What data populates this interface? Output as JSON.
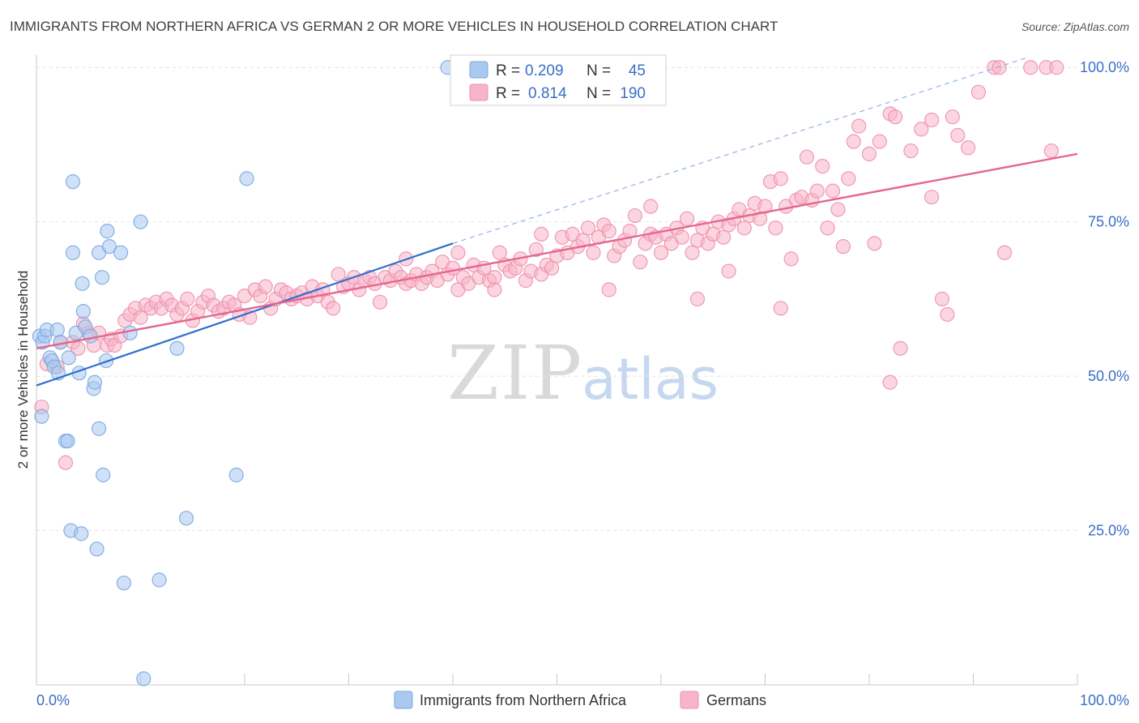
{
  "title": "IMMIGRANTS FROM NORTHERN AFRICA VS GERMAN 2 OR MORE VEHICLES IN HOUSEHOLD CORRELATION CHART",
  "source": "Source: ZipAtlas.com",
  "watermark": {
    "zip": "ZIP",
    "atlas": "atlas"
  },
  "legend_top": {
    "rows": [
      {
        "r_label": "R =",
        "r_value": "0.209",
        "n_label": "N =",
        "n_value": "45",
        "color": "#a9c9f0"
      },
      {
        "r_label": "R =",
        "r_value": "0.814",
        "n_label": "N =",
        "n_value": "190",
        "color": "#f7b5c9"
      }
    ]
  },
  "legend_bottom": {
    "items": [
      {
        "label": "Immigrants from Northern Africa",
        "color": "#a9c9f0"
      },
      {
        "label": "Germans",
        "color": "#f7b5c9"
      }
    ]
  },
  "chart_data": {
    "type": "scatter",
    "title": "IMMIGRANTS FROM NORTHERN AFRICA VS GERMAN 2 OR MORE VEHICLES IN HOUSEHOLD CORRELATION CHART",
    "xlabel": "",
    "ylabel": "2 or more Vehicles in Household",
    "xlim": [
      0,
      100
    ],
    "ylim": [
      0,
      102
    ],
    "x_ticks": [
      "0.0%",
      "100.0%"
    ],
    "y_ticks": [
      {
        "value": 25,
        "label": "25.0%"
      },
      {
        "value": 50,
        "label": "50.0%"
      },
      {
        "value": 75,
        "label": "75.0%"
      },
      {
        "value": 100,
        "label": "100.0%"
      }
    ],
    "series": [
      {
        "name": "Immigrants from Northern Africa",
        "color": "#a9c9f0",
        "stroke": "#7aa8e0",
        "trend": {
          "x0": 0,
          "y0": 48.5,
          "x1": 40,
          "y1": 71.5,
          "dash_to_x": 95,
          "dash_to_y": 101.5,
          "color": "#2f6fd0"
        },
        "points": [
          [
            0.3,
            56.5
          ],
          [
            0.5,
            43.5
          ],
          [
            0.6,
            55.5
          ],
          [
            0.8,
            56.5
          ],
          [
            1.0,
            57.5
          ],
          [
            1.3,
            53.0
          ],
          [
            1.5,
            52.5
          ],
          [
            1.7,
            51.5
          ],
          [
            2.0,
            57.5
          ],
          [
            2.1,
            50.5
          ],
          [
            2.3,
            55.5
          ],
          [
            2.8,
            39.5
          ],
          [
            3.0,
            39.5
          ],
          [
            3.1,
            53.0
          ],
          [
            3.3,
            25.0
          ],
          [
            3.5,
            81.5
          ],
          [
            3.5,
            70.0
          ],
          [
            3.8,
            57.0
          ],
          [
            4.1,
            50.5
          ],
          [
            4.3,
            24.5
          ],
          [
            4.4,
            65.0
          ],
          [
            4.5,
            60.5
          ],
          [
            4.7,
            58.0
          ],
          [
            5.2,
            56.5
          ],
          [
            5.5,
            48.0
          ],
          [
            5.6,
            49.0
          ],
          [
            5.8,
            22.0
          ],
          [
            6.0,
            41.5
          ],
          [
            6.0,
            70.0
          ],
          [
            6.3,
            66.0
          ],
          [
            6.4,
            34.0
          ],
          [
            6.7,
            52.5
          ],
          [
            6.8,
            73.5
          ],
          [
            7.0,
            71.0
          ],
          [
            8.1,
            70.0
          ],
          [
            8.4,
            16.5
          ],
          [
            9.0,
            57.0
          ],
          [
            10.0,
            75.0
          ],
          [
            10.3,
            1.0
          ],
          [
            11.8,
            17.0
          ],
          [
            13.5,
            54.5
          ],
          [
            14.4,
            27.0
          ],
          [
            19.2,
            34.0
          ],
          [
            20.2,
            82.0
          ],
          [
            39.5,
            100.0
          ]
        ]
      },
      {
        "name": "Germans",
        "color": "#f7b5c9",
        "stroke": "#ee8fad",
        "trend": {
          "x0": 0,
          "y0": 54.5,
          "x1": 100,
          "y1": 86.0,
          "color": "#e4678f"
        },
        "points": [
          [
            0.5,
            45.0
          ],
          [
            1.0,
            52.0
          ],
          [
            2.0,
            51.5
          ],
          [
            2.3,
            55.5
          ],
          [
            2.8,
            36.0
          ],
          [
            3.5,
            55.5
          ],
          [
            4.0,
            54.5
          ],
          [
            4.5,
            58.5
          ],
          [
            5.0,
            57.0
          ],
          [
            5.5,
            55.0
          ],
          [
            6.0,
            57.0
          ],
          [
            6.8,
            55.0
          ],
          [
            7.2,
            56.0
          ],
          [
            7.5,
            55.0
          ],
          [
            8.1,
            56.5
          ],
          [
            8.5,
            59.0
          ],
          [
            9.0,
            60.0
          ],
          [
            9.5,
            61.0
          ],
          [
            10.0,
            59.5
          ],
          [
            10.5,
            61.5
          ],
          [
            11.0,
            61.0
          ],
          [
            11.5,
            62.0
          ],
          [
            12.0,
            61.0
          ],
          [
            12.5,
            62.5
          ],
          [
            13.0,
            61.5
          ],
          [
            13.5,
            60.0
          ],
          [
            14.0,
            61.0
          ],
          [
            14.5,
            62.5
          ],
          [
            15.0,
            59.0
          ],
          [
            15.5,
            60.5
          ],
          [
            16.0,
            62.0
          ],
          [
            16.5,
            63.0
          ],
          [
            17.0,
            61.5
          ],
          [
            17.5,
            60.5
          ],
          [
            18.0,
            61.0
          ],
          [
            18.5,
            62.0
          ],
          [
            19.0,
            61.5
          ],
          [
            19.5,
            60.0
          ],
          [
            20.0,
            63.0
          ],
          [
            20.5,
            59.5
          ],
          [
            21.0,
            64.0
          ],
          [
            21.5,
            63.0
          ],
          [
            22.0,
            64.5
          ],
          [
            22.5,
            61.0
          ],
          [
            23.0,
            62.5
          ],
          [
            23.5,
            64.0
          ],
          [
            24.0,
            63.5
          ],
          [
            24.5,
            62.5
          ],
          [
            25.0,
            63.0
          ],
          [
            25.5,
            63.5
          ],
          [
            26.0,
            62.5
          ],
          [
            26.5,
            64.5
          ],
          [
            27.0,
            63.0
          ],
          [
            27.5,
            64.0
          ],
          [
            28.0,
            62.0
          ],
          [
            28.5,
            61.0
          ],
          [
            29.0,
            66.5
          ],
          [
            29.5,
            64.5
          ],
          [
            30.0,
            65.0
          ],
          [
            30.5,
            66.0
          ],
          [
            31.0,
            64.0
          ],
          [
            31.5,
            65.5
          ],
          [
            32.0,
            66.0
          ],
          [
            32.5,
            65.0
          ],
          [
            33.0,
            62.0
          ],
          [
            33.5,
            66.0
          ],
          [
            34.0,
            65.5
          ],
          [
            34.5,
            67.0
          ],
          [
            35.0,
            66.0
          ],
          [
            35.5,
            65.0
          ],
          [
            36.0,
            65.5
          ],
          [
            36.5,
            66.5
          ],
          [
            37.0,
            65.0
          ],
          [
            37.5,
            66.0
          ],
          [
            38.0,
            67.0
          ],
          [
            38.5,
            65.5
          ],
          [
            39.0,
            68.5
          ],
          [
            39.5,
            66.5
          ],
          [
            40.0,
            67.5
          ],
          [
            40.5,
            64.0
          ],
          [
            41.0,
            66.0
          ],
          [
            41.5,
            65.0
          ],
          [
            42.0,
            68.0
          ],
          [
            42.5,
            66.0
          ],
          [
            43.0,
            67.5
          ],
          [
            43.5,
            65.5
          ],
          [
            44.0,
            66.0
          ],
          [
            44.5,
            70.0
          ],
          [
            45.0,
            68.0
          ],
          [
            45.5,
            67.0
          ],
          [
            46.0,
            67.5
          ],
          [
            46.5,
            69.0
          ],
          [
            47.0,
            65.5
          ],
          [
            47.5,
            67.0
          ],
          [
            48.0,
            70.5
          ],
          [
            48.5,
            66.5
          ],
          [
            49.0,
            68.0
          ],
          [
            49.5,
            67.5
          ],
          [
            50.0,
            69.5
          ],
          [
            50.5,
            72.5
          ],
          [
            51.0,
            70.0
          ],
          [
            51.5,
            73.0
          ],
          [
            52.0,
            71.0
          ],
          [
            52.5,
            72.0
          ],
          [
            53.0,
            74.0
          ],
          [
            53.5,
            70.0
          ],
          [
            54.0,
            72.5
          ],
          [
            54.5,
            74.5
          ],
          [
            55.0,
            73.5
          ],
          [
            55.5,
            69.5
          ],
          [
            56.0,
            71.0
          ],
          [
            56.5,
            72.0
          ],
          [
            57.0,
            73.5
          ],
          [
            57.5,
            76.0
          ],
          [
            58.0,
            68.5
          ],
          [
            58.5,
            71.5
          ],
          [
            59.0,
            73.0
          ],
          [
            59.5,
            72.5
          ],
          [
            60.0,
            70.0
          ],
          [
            60.5,
            73.0
          ],
          [
            61.0,
            71.5
          ],
          [
            61.5,
            74.0
          ],
          [
            62.0,
            72.5
          ],
          [
            62.5,
            75.5
          ],
          [
            63.0,
            70.0
          ],
          [
            63.5,
            72.0
          ],
          [
            64.0,
            74.0
          ],
          [
            64.5,
            71.5
          ],
          [
            65.0,
            73.0
          ],
          [
            65.5,
            75.0
          ],
          [
            66.0,
            72.5
          ],
          [
            66.5,
            74.5
          ],
          [
            67.0,
            75.5
          ],
          [
            67.5,
            77.0
          ],
          [
            68.0,
            74.0
          ],
          [
            68.5,
            76.0
          ],
          [
            69.0,
            78.0
          ],
          [
            69.5,
            75.5
          ],
          [
            70.0,
            77.5
          ],
          [
            70.5,
            81.5
          ],
          [
            71.0,
            74.0
          ],
          [
            71.5,
            82.0
          ],
          [
            72.0,
            77.5
          ],
          [
            72.5,
            69.0
          ],
          [
            73.0,
            78.5
          ],
          [
            73.5,
            79.0
          ],
          [
            74.0,
            85.5
          ],
          [
            74.5,
            78.5
          ],
          [
            75.0,
            80.0
          ],
          [
            75.5,
            84.0
          ],
          [
            76.0,
            74.0
          ],
          [
            76.5,
            80.0
          ],
          [
            77.0,
            77.0
          ],
          [
            77.5,
            71.0
          ],
          [
            78.0,
            82.0
          ],
          [
            78.5,
            88.0
          ],
          [
            79.0,
            90.5
          ],
          [
            80.0,
            86.0
          ],
          [
            80.5,
            71.5
          ],
          [
            81.0,
            88.0
          ],
          [
            82.0,
            92.5
          ],
          [
            82.5,
            92.0
          ],
          [
            83.0,
            54.5
          ],
          [
            84.0,
            86.5
          ],
          [
            85.0,
            90.0
          ],
          [
            86.0,
            79.0
          ],
          [
            87.0,
            62.5
          ],
          [
            88.0,
            92.0
          ],
          [
            88.5,
            89.0
          ],
          [
            89.5,
            87.0
          ],
          [
            90.5,
            96.0
          ],
          [
            92.0,
            100.0
          ],
          [
            92.5,
            100.0
          ],
          [
            95.5,
            100.0
          ],
          [
            93.0,
            70.0
          ],
          [
            97.0,
            100.0
          ],
          [
            97.5,
            86.5
          ],
          [
            98.0,
            100.0
          ],
          [
            87.5,
            60.0
          ],
          [
            82.0,
            49.0
          ],
          [
            71.5,
            61.0
          ],
          [
            66.5,
            67.0
          ],
          [
            59.0,
            77.5
          ],
          [
            63.5,
            62.5
          ],
          [
            55.0,
            64.0
          ],
          [
            48.5,
            73.0
          ],
          [
            44.0,
            64.0
          ],
          [
            40.5,
            70.0
          ],
          [
            35.5,
            69.0
          ],
          [
            86.0,
            91.5
          ]
        ]
      }
    ]
  }
}
